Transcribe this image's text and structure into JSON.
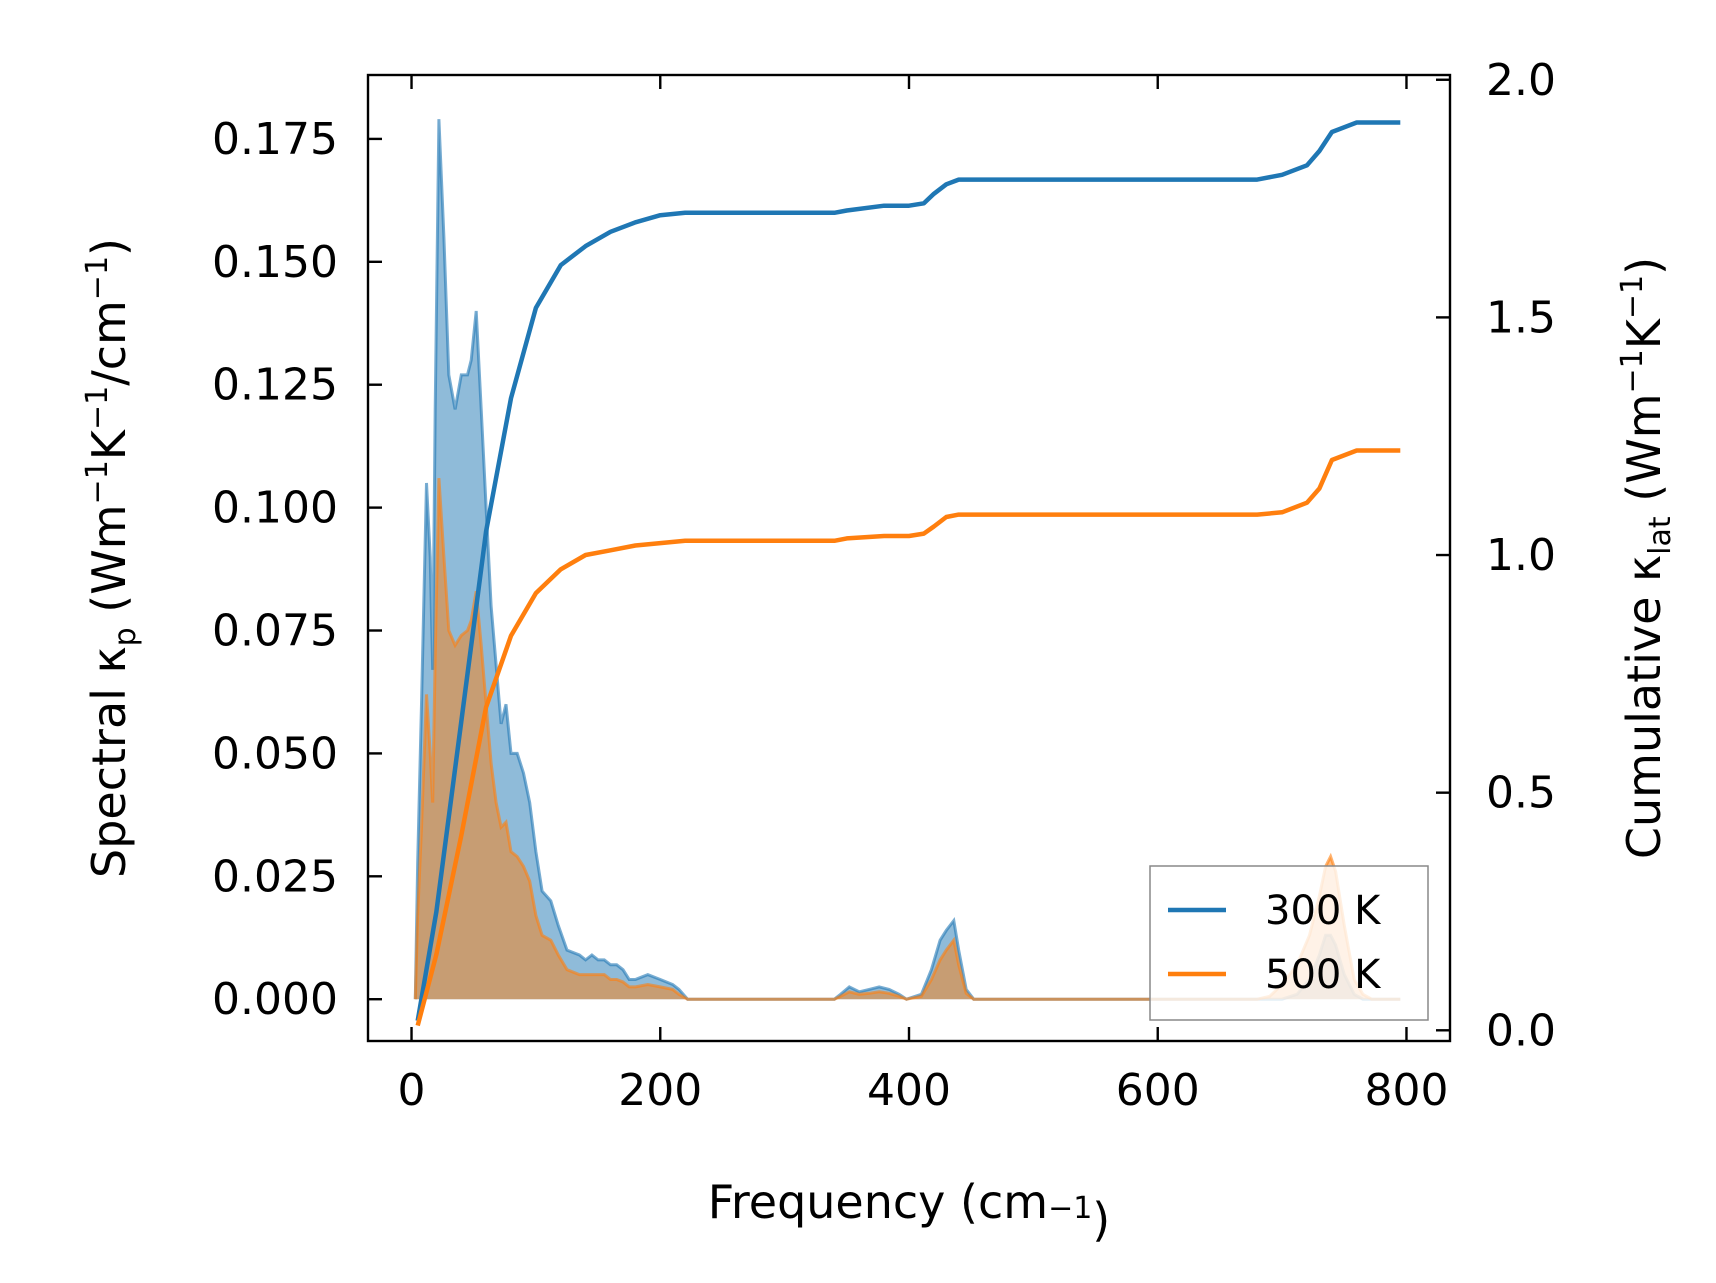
{
  "chart_data": {
    "type": "line",
    "title": "",
    "xlabel": "Frequency (cm",
    "xlabel_sup": "−1",
    "xlabel_close": ")",
    "ylabel_left": {
      "p1": "Spectral κ",
      "sub": "p",
      "p2": " (Wm",
      "sup1": "−1",
      "p3": "K",
      "sup2": "−1",
      "p4": "/cm",
      "sup3": "−1",
      "p5": ")"
    },
    "ylabel_right": {
      "p1": "Cumulative κ",
      "sub": "lat",
      "p2": " (Wm",
      "sup1": "−1",
      "p3": "K",
      "sup2": "−1",
      "p4": ")"
    },
    "xlim": [
      -35,
      835
    ],
    "ylim_left": [
      -0.0085,
      0.188
    ],
    "ylim_right": [
      -0.0225,
      2.01
    ],
    "x_ticks": [
      0,
      200,
      400,
      600,
      800
    ],
    "x_tick_labels": [
      "0",
      "200",
      "400",
      "600",
      "800"
    ],
    "y_left_ticks": [
      0.0,
      0.025,
      0.05,
      0.075,
      0.1,
      0.125,
      0.15,
      0.175
    ],
    "y_left_tick_labels": [
      "0.000",
      "0.025",
      "0.050",
      "0.075",
      "0.100",
      "0.125",
      "0.150",
      "0.175"
    ],
    "y_right_ticks": [
      0.0,
      0.5,
      1.0,
      1.5,
      2.0
    ],
    "y_right_tick_labels": [
      "0.0",
      "0.5",
      "1.0",
      "1.5",
      "2.0"
    ],
    "legend_position": "bottom-right",
    "series": [
      {
        "name": "300 K",
        "color": "#1f77b4",
        "spectral": [
          [
            3,
            0.0
          ],
          [
            5,
            0.028
          ],
          [
            8,
            0.06
          ],
          [
            12,
            0.105
          ],
          [
            15,
            0.09
          ],
          [
            17,
            0.067
          ],
          [
            19,
            0.12
          ],
          [
            22,
            0.179
          ],
          [
            26,
            0.155
          ],
          [
            30,
            0.127
          ],
          [
            35,
            0.12
          ],
          [
            40,
            0.127
          ],
          [
            45,
            0.127
          ],
          [
            48,
            0.13
          ],
          [
            52,
            0.14
          ],
          [
            56,
            0.12
          ],
          [
            60,
            0.1
          ],
          [
            64,
            0.08
          ],
          [
            68,
            0.068
          ],
          [
            72,
            0.056
          ],
          [
            76,
            0.06
          ],
          [
            80,
            0.05
          ],
          [
            85,
            0.05
          ],
          [
            90,
            0.046
          ],
          [
            95,
            0.04
          ],
          [
            100,
            0.03
          ],
          [
            105,
            0.022
          ],
          [
            112,
            0.02
          ],
          [
            118,
            0.015
          ],
          [
            125,
            0.01
          ],
          [
            135,
            0.009
          ],
          [
            140,
            0.008
          ],
          [
            145,
            0.009
          ],
          [
            150,
            0.008
          ],
          [
            155,
            0.008
          ],
          [
            160,
            0.007
          ],
          [
            165,
            0.007
          ],
          [
            170,
            0.006
          ],
          [
            175,
            0.004
          ],
          [
            180,
            0.004
          ],
          [
            190,
            0.005
          ],
          [
            200,
            0.004
          ],
          [
            210,
            0.003
          ],
          [
            215,
            0.002
          ],
          [
            222,
            0.0
          ],
          [
            340,
            0.0
          ],
          [
            345,
            0.001
          ],
          [
            352,
            0.0025
          ],
          [
            360,
            0.0015
          ],
          [
            368,
            0.002
          ],
          [
            376,
            0.0025
          ],
          [
            384,
            0.002
          ],
          [
            392,
            0.001
          ],
          [
            398,
            0.0
          ],
          [
            410,
            0.001
          ],
          [
            418,
            0.006
          ],
          [
            425,
            0.012
          ],
          [
            430,
            0.014
          ],
          [
            436,
            0.016
          ],
          [
            440,
            0.01
          ],
          [
            446,
            0.002
          ],
          [
            452,
            0.0
          ],
          [
            680,
            0.0
          ],
          [
            690,
            0.0
          ],
          [
            700,
            0.0
          ],
          [
            712,
            0.001
          ],
          [
            722,
            0.004
          ],
          [
            730,
            0.009
          ],
          [
            735,
            0.013
          ],
          [
            739,
            0.013
          ],
          [
            743,
            0.011
          ],
          [
            750,
            0.005
          ],
          [
            758,
            0.001
          ],
          [
            765,
            0.0
          ],
          [
            795,
            0.0
          ]
        ],
        "cumulative": [
          [
            5,
            0.02
          ],
          [
            20,
            0.25
          ],
          [
            40,
            0.65
          ],
          [
            60,
            1.05
          ],
          [
            80,
            1.33
          ],
          [
            100,
            1.52
          ],
          [
            120,
            1.61
          ],
          [
            140,
            1.65
          ],
          [
            160,
            1.68
          ],
          [
            180,
            1.7
          ],
          [
            200,
            1.715
          ],
          [
            220,
            1.72
          ],
          [
            340,
            1.72
          ],
          [
            350,
            1.725
          ],
          [
            380,
            1.735
          ],
          [
            400,
            1.735
          ],
          [
            412,
            1.74
          ],
          [
            420,
            1.76
          ],
          [
            430,
            1.78
          ],
          [
            440,
            1.79
          ],
          [
            680,
            1.79
          ],
          [
            700,
            1.8
          ],
          [
            720,
            1.82
          ],
          [
            730,
            1.85
          ],
          [
            740,
            1.89
          ],
          [
            760,
            1.91
          ],
          [
            795,
            1.91
          ]
        ]
      },
      {
        "name": "500 K",
        "color": "#ff7f0e",
        "spectral": [
          [
            3,
            0.0
          ],
          [
            5,
            0.017
          ],
          [
            8,
            0.035
          ],
          [
            12,
            0.062
          ],
          [
            15,
            0.05
          ],
          [
            17,
            0.04
          ],
          [
            19,
            0.07
          ],
          [
            22,
            0.106
          ],
          [
            26,
            0.09
          ],
          [
            30,
            0.075
          ],
          [
            35,
            0.072
          ],
          [
            40,
            0.074
          ],
          [
            45,
            0.075
          ],
          [
            48,
            0.077
          ],
          [
            52,
            0.083
          ],
          [
            56,
            0.072
          ],
          [
            60,
            0.06
          ],
          [
            64,
            0.048
          ],
          [
            68,
            0.04
          ],
          [
            72,
            0.035
          ],
          [
            76,
            0.036
          ],
          [
            80,
            0.03
          ],
          [
            85,
            0.029
          ],
          [
            90,
            0.027
          ],
          [
            95,
            0.024
          ],
          [
            100,
            0.017
          ],
          [
            105,
            0.013
          ],
          [
            112,
            0.012
          ],
          [
            118,
            0.009
          ],
          [
            125,
            0.006
          ],
          [
            135,
            0.005
          ],
          [
            140,
            0.005
          ],
          [
            145,
            0.005
          ],
          [
            150,
            0.005
          ],
          [
            155,
            0.005
          ],
          [
            160,
            0.004
          ],
          [
            165,
            0.004
          ],
          [
            170,
            0.0035
          ],
          [
            175,
            0.0025
          ],
          [
            180,
            0.0025
          ],
          [
            190,
            0.003
          ],
          [
            200,
            0.0025
          ],
          [
            210,
            0.002
          ],
          [
            215,
            0.001
          ],
          [
            222,
            0.0
          ],
          [
            340,
            0.0
          ],
          [
            345,
            0.0006
          ],
          [
            352,
            0.0015
          ],
          [
            360,
            0.001
          ],
          [
            368,
            0.0012
          ],
          [
            376,
            0.0015
          ],
          [
            384,
            0.0012
          ],
          [
            392,
            0.0006
          ],
          [
            398,
            0.0
          ],
          [
            410,
            0.0006
          ],
          [
            418,
            0.004
          ],
          [
            425,
            0.008
          ],
          [
            430,
            0.01
          ],
          [
            436,
            0.012
          ],
          [
            440,
            0.007
          ],
          [
            446,
            0.0012
          ],
          [
            452,
            0.0
          ],
          [
            680,
            0.0
          ],
          [
            690,
            0.0006
          ],
          [
            700,
            0.003
          ],
          [
            712,
            0.007
          ],
          [
            722,
            0.013
          ],
          [
            730,
            0.021
          ],
          [
            735,
            0.027
          ],
          [
            739,
            0.029
          ],
          [
            743,
            0.026
          ],
          [
            750,
            0.015
          ],
          [
            758,
            0.004
          ],
          [
            765,
            0.001
          ],
          [
            772,
            0.0
          ],
          [
            795,
            0.0
          ]
        ],
        "cumulative": [
          [
            5,
            0.01
          ],
          [
            20,
            0.16
          ],
          [
            40,
            0.41
          ],
          [
            60,
            0.68
          ],
          [
            80,
            0.83
          ],
          [
            100,
            0.92
          ],
          [
            120,
            0.97
          ],
          [
            140,
            1.0
          ],
          [
            160,
            1.01
          ],
          [
            180,
            1.02
          ],
          [
            200,
            1.025
          ],
          [
            220,
            1.03
          ],
          [
            340,
            1.03
          ],
          [
            350,
            1.035
          ],
          [
            380,
            1.04
          ],
          [
            400,
            1.04
          ],
          [
            412,
            1.045
          ],
          [
            420,
            1.06
          ],
          [
            430,
            1.08
          ],
          [
            440,
            1.085
          ],
          [
            680,
            1.085
          ],
          [
            700,
            1.09
          ],
          [
            720,
            1.11
          ],
          [
            730,
            1.14
          ],
          [
            740,
            1.2
          ],
          [
            760,
            1.22
          ],
          [
            795,
            1.22
          ]
        ]
      }
    ]
  }
}
